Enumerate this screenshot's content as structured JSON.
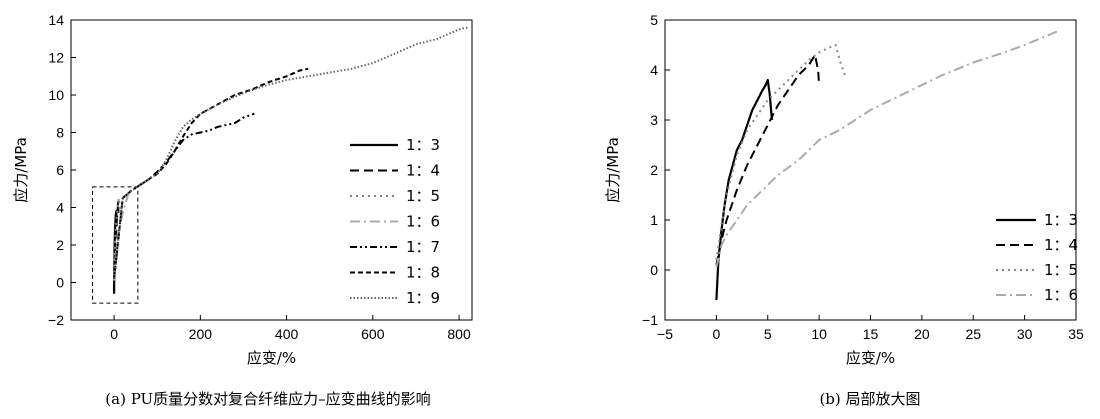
{
  "chart_data": [
    {
      "type": "line",
      "caption": "(a) PU质量分数对复合纤维应力–应变曲线的影响",
      "xlabel": "应变/%",
      "ylabel": "应力/MPa",
      "xlim": [
        -100,
        830
      ],
      "ylim": [
        -2,
        14
      ],
      "xticks": [
        0,
        200,
        400,
        600,
        800
      ],
      "yticks": [
        -2,
        0,
        2,
        4,
        6,
        8,
        10,
        12,
        14
      ],
      "legend_position": "right",
      "series": [
        {
          "name": "1：3",
          "style": "solid",
          "color": "#000000",
          "x": [
            0,
            0.3,
            0.7,
            1.2,
            1.8,
            2.5,
            3.2,
            4.0,
            4.6,
            5.0,
            5.3,
            5.6
          ],
          "y": [
            -0.6,
            0.4,
            1.1,
            2.0,
            2.6,
            3.0,
            3.3,
            3.6,
            3.7,
            3.8,
            3.4,
            3.0
          ]
        },
        {
          "name": "1：4",
          "style": "dashed",
          "color": "#000000",
          "x": [
            0,
            1,
            2,
            3,
            4,
            5,
            6,
            7,
            8,
            9,
            9.6,
            10
          ],
          "y": [
            0.1,
            1.0,
            1.6,
            2.1,
            2.5,
            2.8,
            3.2,
            3.6,
            3.9,
            4.2,
            4.3,
            3.7
          ]
        },
        {
          "name": "1：5",
          "style": "dotted",
          "color": "#888888",
          "x": [
            0,
            2,
            4,
            6,
            8,
            10,
            11,
            12,
            12.5
          ],
          "y": [
            0.2,
            2.0,
            3.0,
            3.5,
            3.9,
            4.3,
            4.5,
            4.2,
            3.9
          ]
        },
        {
          "name": "1：6",
          "style": "dashdot",
          "color": "#aaaaaa",
          "x": [
            0,
            1,
            2,
            3,
            5,
            8,
            10,
            15,
            20,
            25,
            30,
            33.5
          ],
          "y": [
            0.1,
            0.7,
            1.0,
            1.3,
            1.8,
            2.3,
            2.7,
            3.2,
            3.7,
            4.1,
            4.5,
            4.8
          ]
        },
        {
          "name": "1：7",
          "style": "dashdotdot",
          "color": "#000000",
          "x": [
            0,
            20,
            40,
            60,
            80,
            100,
            120,
            140,
            160,
            180,
            200,
            220,
            240,
            260,
            280,
            300,
            325
          ],
          "y": [
            0.2,
            4.5,
            4.9,
            5.2,
            5.5,
            5.9,
            6.4,
            7.0,
            7.6,
            7.9,
            8.0,
            8.1,
            8.3,
            8.4,
            8.5,
            8.8,
            9.0
          ]
        },
        {
          "name": "1：8",
          "style": "dash-short",
          "color": "#000000",
          "x": [
            0,
            20,
            40,
            60,
            80,
            100,
            120,
            140,
            160,
            180,
            200,
            240,
            280,
            320,
            360,
            400,
            430,
            450
          ],
          "y": [
            0.2,
            4.5,
            4.9,
            5.2,
            5.5,
            5.8,
            6.3,
            7.0,
            7.8,
            8.5,
            9.0,
            9.5,
            10.0,
            10.3,
            10.7,
            11.0,
            11.3,
            11.4
          ]
        },
        {
          "name": "1：9",
          "style": "dense-dotted",
          "color": "#666666",
          "x": [
            0,
            20,
            40,
            60,
            80,
            100,
            120,
            140,
            160,
            180,
            200,
            250,
            300,
            350,
            400,
            450,
            500,
            550,
            600,
            650,
            700,
            750,
            780,
            800,
            820
          ],
          "y": [
            0.2,
            4.5,
            4.9,
            5.2,
            5.5,
            5.8,
            6.5,
            7.5,
            8.3,
            8.7,
            9.0,
            9.6,
            10.1,
            10.5,
            10.8,
            11.0,
            11.2,
            11.4,
            11.7,
            12.2,
            12.7,
            13.0,
            13.3,
            13.5,
            13.6
          ]
        }
      ],
      "annotation": "dashed zoom rectangle around origin region"
    },
    {
      "type": "line",
      "caption": "(b) 局部放大图",
      "xlabel": "应变/%",
      "ylabel": "应力/MPa",
      "xlim": [
        -5,
        35
      ],
      "ylim": [
        -1,
        5
      ],
      "xticks": [
        -5,
        0,
        5,
        10,
        15,
        20,
        25,
        30,
        35
      ],
      "yticks": [
        -1,
        0,
        1,
        2,
        3,
        4,
        5
      ],
      "legend_position": "bottom-right",
      "series": [
        {
          "name": "1：3",
          "style": "solid",
          "color": "#000000",
          "x": [
            0,
            0.2,
            0.5,
            0.8,
            1.2,
            1.6,
            2.0,
            2.5,
            3.0,
            3.5,
            4.0,
            4.5,
            4.8,
            5.0,
            5.2,
            5.4
          ],
          "y": [
            -0.6,
            0.2,
            0.8,
            1.3,
            1.8,
            2.1,
            2.4,
            2.6,
            2.9,
            3.2,
            3.4,
            3.6,
            3.7,
            3.8,
            3.5,
            3.0
          ]
        },
        {
          "name": "1：4",
          "style": "dashed",
          "color": "#000000",
          "x": [
            0,
            0.5,
            1,
            2,
            3,
            4,
            5,
            6,
            7,
            8,
            9,
            9.6,
            9.9,
            10
          ],
          "y": [
            0.1,
            0.6,
            1.0,
            1.6,
            2.1,
            2.5,
            2.9,
            3.3,
            3.6,
            3.9,
            4.1,
            4.3,
            4.0,
            3.7
          ]
        },
        {
          "name": "1：5",
          "style": "dotted",
          "color": "#888888",
          "x": [
            0,
            0.5,
            1,
            2,
            3,
            4,
            5,
            6,
            7,
            8,
            9,
            10,
            11,
            11.6,
            12,
            12.5
          ],
          "y": [
            0.2,
            0.9,
            1.5,
            2.3,
            2.8,
            3.1,
            3.4,
            3.6,
            3.8,
            4.0,
            4.2,
            4.35,
            4.45,
            4.5,
            4.2,
            3.9
          ]
        },
        {
          "name": "1：6",
          "style": "dashdot",
          "color": "#aaaaaa",
          "x": [
            0,
            0.5,
            1,
            2,
            3,
            4,
            6,
            8,
            10,
            12,
            15,
            18,
            20,
            22,
            25,
            28,
            30,
            33.5
          ],
          "y": [
            0.05,
            0.5,
            0.7,
            1.0,
            1.3,
            1.5,
            1.9,
            2.2,
            2.6,
            2.8,
            3.2,
            3.5,
            3.7,
            3.9,
            4.15,
            4.35,
            4.5,
            4.8
          ]
        }
      ]
    }
  ]
}
